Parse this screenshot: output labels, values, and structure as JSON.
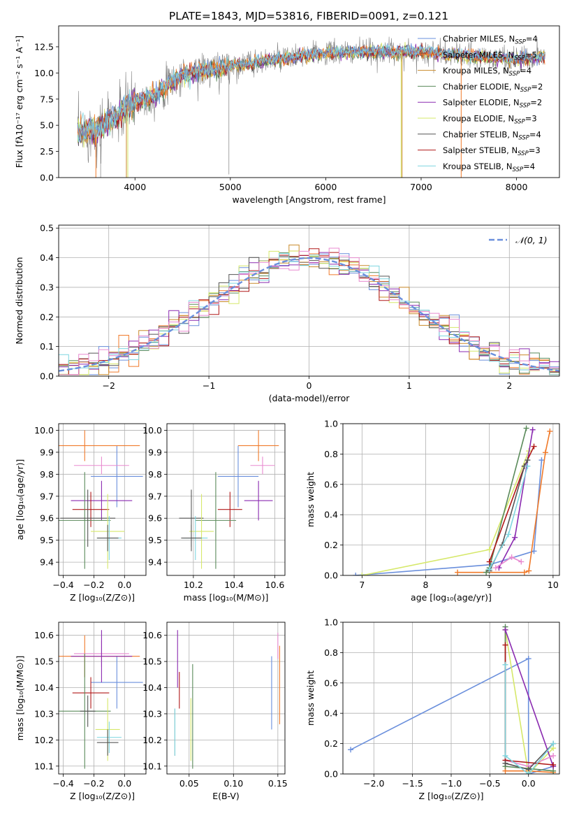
{
  "colors": {
    "chabrier_miles": "#6a8fdc",
    "salpeter_miles": "#f07a2a",
    "kroupa_miles": "#c98a2a",
    "chabrier_elodie": "#5a8a5a",
    "salpeter_elodie": "#8a2ab0",
    "kroupa_elodie": "#d6e86a",
    "chabrier_stelib": "#555555",
    "salpeter_stelib": "#b01818",
    "kroupa_stelib": "#7fd6e0",
    "pink": "#e88ad0"
  },
  "chart_data": [
    {
      "type": "line",
      "id": "spectrum",
      "title": "PLATE=1843, MJD=53816, FIBERID=0091, z=0.121",
      "xlabel": "wavelength [Angstrom, rest frame]",
      "ylabel": "Flux [fλ10⁻¹⁷ erg cm⁻² s⁻¹ A⁻¹]",
      "xlim": [
        3200,
        8450
      ],
      "ylim": [
        0,
        14.5
      ],
      "xticks": [
        "4000",
        "5000",
        "6000",
        "7000",
        "8000"
      ],
      "xtick_values": [
        4000,
        5000,
        6000,
        7000,
        8000
      ],
      "yticks": [
        "0.0",
        "2.5",
        "5.0",
        "7.5",
        "10.0",
        "12.5"
      ],
      "ytick_values": [
        0,
        2.5,
        5,
        7.5,
        10,
        12.5
      ],
      "legend_position": "top-right",
      "legend": [
        "Chabrier MILES, N_SSP=4",
        "Salpeter MILES, N_SSP=5",
        "Kroupa MILES, N_SSP=4",
        "Chabrier ELODIE, N_SSP=2",
        "Salpeter ELODIE, N_SSP=2",
        "Kroupa ELODIE, N_SSP=3",
        "Chabrier STELIB, N_SSP=4",
        "Salpeter STELIB, N_SSP=3",
        "Kroupa STELIB, N_SSP=4"
      ],
      "legend_main": [
        "Chabrier MILES, N",
        "Salpeter MILES, N",
        "Kroupa MILES, N",
        "Chabrier ELODIE, N",
        "Salpeter ELODIE, N",
        "Kroupa ELODIE, N",
        "Chabrier STELIB, N",
        "Salpeter STELIB, N",
        "Kroupa STELIB, N"
      ],
      "legend_sub": "SSP",
      "legend_n": [
        "=4",
        "=5",
        "=4",
        "=2",
        "=2",
        "=3",
        "=4",
        "=3",
        "=4"
      ],
      "continuum_x": [
        3400,
        3600,
        3800,
        4000,
        4200,
        4500,
        5000,
        5500,
        6000,
        6500,
        7000,
        7500,
        8000,
        8300
      ],
      "continuum_y": [
        4.3,
        4.6,
        5.8,
        7.3,
        7.8,
        9.8,
        10.7,
        11.3,
        11.9,
        12.0,
        12.0,
        11.6,
        11.3,
        11.6
      ]
    },
    {
      "type": "histogram",
      "id": "residuals",
      "xlabel": "(data-model)/error",
      "ylabel": "Normed distribution",
      "xlim": [
        -2.5,
        2.5
      ],
      "ylim": [
        0,
        0.51
      ],
      "xticks": [
        "−2",
        "−1",
        "0",
        "1",
        "2"
      ],
      "xtick_values": [
        -2,
        -1,
        0,
        1,
        2
      ],
      "yticks": [
        "0.0",
        "0.1",
        "0.2",
        "0.3",
        "0.4",
        "0.5"
      ],
      "ytick_values": [
        0,
        0.1,
        0.2,
        0.3,
        0.4,
        0.5
      ],
      "legend": [
        "𝒩(0, 1)"
      ],
      "legend_position": "top-right",
      "gaussian_mean": 0,
      "gaussian_sigma": 1,
      "bin_width": 0.1
    },
    {
      "type": "scatter",
      "id": "age_vs_Z",
      "xlabel": "Z [log₁₀(Z/Z⊙)]",
      "ylabel": "age  [log₁₀(age/yr)]",
      "xlim": [
        -0.43,
        0.14
      ],
      "ylim": [
        9.34,
        10.03
      ],
      "xticks": [
        "−0.4",
        "−0.2",
        "0.0"
      ],
      "xtick_values": [
        -0.4,
        -0.2,
        0.0
      ],
      "yticks": [
        "9.4",
        "9.5",
        "9.6",
        "9.7",
        "9.8",
        "9.9",
        "10.0"
      ],
      "ytick_values": [
        9.4,
        9.5,
        9.6,
        9.7,
        9.8,
        9.9,
        10.0
      ],
      "points": [
        {
          "c": "chabrier_miles",
          "x": -0.05,
          "xe": 0.17,
          "y": 9.79,
          "ye": 0.14
        },
        {
          "c": "salpeter_miles",
          "x": -0.26,
          "xe": 0.36,
          "y": 9.93,
          "ye": 0.07
        },
        {
          "c": "pink",
          "x": -0.15,
          "xe": 0.18,
          "y": 9.84,
          "ye": 0.04
        },
        {
          "c": "salpeter_elodie",
          "x": -0.15,
          "xe": 0.2,
          "y": 9.68,
          "ye": 0.09
        },
        {
          "c": "salpeter_stelib",
          "x": -0.22,
          "xe": 0.12,
          "y": 9.64,
          "ye": 0.08
        },
        {
          "c": "chabrier_elodie",
          "x": -0.26,
          "xe": 0.17,
          "y": 9.59,
          "ye": 0.22
        },
        {
          "c": "chabrier_stelib",
          "x": -0.24,
          "xe": 0.18,
          "y": 9.6,
          "ye": 0.13
        },
        {
          "c": "kroupa_elodie",
          "x": -0.11,
          "xe": 0.11,
          "y": 9.54,
          "ye": 0.17
        },
        {
          "c": "kroupa_stelib",
          "x": -0.1,
          "xe": 0.08,
          "y": 9.51,
          "ye": 0.1
        },
        {
          "c": "chabrier_stelib",
          "x": -0.11,
          "xe": 0.07,
          "y": 9.51,
          "ye": 0.06
        }
      ]
    },
    {
      "type": "scatter",
      "id": "age_vs_mass",
      "xlabel": "mass [log₁₀(M/M⊙)]",
      "ylabel": "",
      "xlim": [
        10.07,
        10.65
      ],
      "ylim": [
        9.34,
        10.03
      ],
      "xticks": [
        "10.2",
        "10.4",
        "10.6"
      ],
      "xtick_values": [
        10.2,
        10.4,
        10.6
      ],
      "yticks": [
        "9.4",
        "9.5",
        "9.6",
        "9.7",
        "9.8",
        "9.9",
        "10.0"
      ],
      "ytick_values": [
        9.4,
        9.5,
        9.6,
        9.7,
        9.8,
        9.9,
        10.0
      ],
      "points": [
        {
          "c": "chabrier_miles",
          "x": 10.42,
          "xe": 0.1,
          "y": 9.79,
          "ye": 0.14
        },
        {
          "c": "salpeter_miles",
          "x": 10.52,
          "xe": 0.1,
          "y": 9.93,
          "ye": 0.07
        },
        {
          "c": "pink",
          "x": 10.54,
          "xe": 0.06,
          "y": 9.84,
          "ye": 0.04
        },
        {
          "c": "salpeter_elodie",
          "x": 10.52,
          "xe": 0.07,
          "y": 9.68,
          "ye": 0.09
        },
        {
          "c": "salpeter_stelib",
          "x": 10.38,
          "xe": 0.06,
          "y": 9.64,
          "ye": 0.08
        },
        {
          "c": "chabrier_elodie",
          "x": 10.31,
          "xe": 0.1,
          "y": 9.59,
          "ye": 0.22
        },
        {
          "c": "chabrier_stelib",
          "x": 10.19,
          "xe": 0.06,
          "y": 9.6,
          "ye": 0.13
        },
        {
          "c": "kroupa_elodie",
          "x": 10.24,
          "xe": 0.06,
          "y": 9.54,
          "ye": 0.17
        },
        {
          "c": "kroupa_stelib",
          "x": 10.21,
          "xe": 0.06,
          "y": 9.51,
          "ye": 0.1
        },
        {
          "c": "chabrier_stelib",
          "x": 10.19,
          "xe": 0.05,
          "y": 9.51,
          "ye": 0.06
        }
      ]
    },
    {
      "type": "line",
      "id": "weight_vs_age",
      "xlabel": "age  [log₁₀(age/yr)]",
      "ylabel": "mass weight",
      "xlim": [
        6.7,
        10.1
      ],
      "ylim": [
        0,
        1.0
      ],
      "xticks": [
        "7",
        "8",
        "9",
        "10"
      ],
      "xtick_values": [
        7,
        8,
        9,
        10
      ],
      "yticks": [
        "0.0",
        "0.2",
        "0.4",
        "0.6",
        "0.8",
        "1.0"
      ],
      "ytick_values": [
        0,
        0.2,
        0.4,
        0.6,
        0.8,
        1.0
      ],
      "series": [
        {
          "c": "chabrier_miles",
          "x": [
            6.9,
            9.0,
            9.7,
            9.82
          ],
          "y": [
            0.0,
            0.07,
            0.16,
            0.76
          ]
        },
        {
          "c": "salpeter_miles",
          "x": [
            8.5,
            9.55,
            9.62,
            9.88,
            9.95
          ],
          "y": [
            0.02,
            0.02,
            0.03,
            0.81,
            0.95
          ]
        },
        {
          "c": "kroupa_elodie",
          "x": [
            7.0,
            9.0,
            9.62
          ],
          "y": [
            0.0,
            0.17,
            0.82
          ]
        },
        {
          "c": "chabrier_elodie",
          "x": [
            8.95,
            9.0,
            9.58
          ],
          "y": [
            0.02,
            0.05,
            0.97
          ]
        },
        {
          "c": "salpeter_elodie",
          "x": [
            9.15,
            9.4,
            9.68
          ],
          "y": [
            0.05,
            0.25,
            0.96
          ]
        },
        {
          "c": "pink",
          "x": [
            9.1,
            9.35,
            9.5
          ],
          "y": [
            0.05,
            0.12,
            0.09
          ]
        },
        {
          "c": "salpeter_stelib",
          "x": [
            9.0,
            9.55,
            9.7
          ],
          "y": [
            0.09,
            0.72,
            0.85
          ]
        },
        {
          "c": "chabrier_stelib",
          "x": [
            9.0,
            9.2,
            9.55,
            9.6
          ],
          "y": [
            0.03,
            0.2,
            0.72,
            0.76
          ]
        },
        {
          "c": "kroupa_stelib",
          "x": [
            9.0,
            9.3,
            9.6
          ],
          "y": [
            0.04,
            0.27,
            0.72
          ]
        }
      ]
    },
    {
      "type": "scatter",
      "id": "mass_vs_Z",
      "xlabel": "Z [log₁₀(Z/Z⊙)]",
      "ylabel": "mass [log₁₀(M/M⊙)]",
      "xlim": [
        -0.43,
        0.14
      ],
      "ylim": [
        10.07,
        10.65
      ],
      "xticks": [
        "−0.4",
        "−0.2",
        "0.0"
      ],
      "xtick_values": [
        -0.4,
        -0.2,
        0.0
      ],
      "yticks": [
        "10.1",
        "10.2",
        "10.3",
        "10.4",
        "10.5",
        "10.6"
      ],
      "ytick_values": [
        10.1,
        10.2,
        10.3,
        10.4,
        10.5,
        10.6
      ],
      "points": [
        {
          "c": "chabrier_miles",
          "x": -0.05,
          "xe": 0.17,
          "y": 10.42,
          "ye": 0.1
        },
        {
          "c": "salpeter_miles",
          "x": -0.26,
          "xe": 0.36,
          "y": 10.52,
          "ye": 0.08
        },
        {
          "c": "pink",
          "x": -0.15,
          "xe": 0.18,
          "y": 10.53,
          "ye": 0.05
        },
        {
          "c": "salpeter_elodie",
          "x": -0.15,
          "xe": 0.2,
          "y": 10.52,
          "ye": 0.1
        },
        {
          "c": "salpeter_stelib",
          "x": -0.22,
          "xe": 0.12,
          "y": 10.38,
          "ye": 0.06
        },
        {
          "c": "chabrier_elodie",
          "x": -0.26,
          "xe": 0.17,
          "y": 10.31,
          "ye": 0.22
        },
        {
          "c": "chabrier_stelib",
          "x": -0.24,
          "xe": 0.05,
          "y": 10.31,
          "ye": 0.06
        },
        {
          "c": "kroupa_elodie",
          "x": -0.11,
          "xe": 0.08,
          "y": 10.24,
          "ye": 0.12
        },
        {
          "c": "kroupa_stelib",
          "x": -0.1,
          "xe": 0.08,
          "y": 10.21,
          "ye": 0.06
        },
        {
          "c": "chabrier_stelib",
          "x": -0.11,
          "xe": 0.07,
          "y": 10.19,
          "ye": 0.05
        }
      ]
    },
    {
      "type": "scatter",
      "id": "mass_vs_ebv",
      "xlabel": "E(B-V)",
      "ylabel": "",
      "xlim": [
        0.025,
        0.158
      ],
      "ylim": [
        10.07,
        10.65
      ],
      "xticks": [
        "0.05",
        "0.10",
        "0.15"
      ],
      "xtick_values": [
        0.05,
        0.1,
        0.15
      ],
      "yticks": [
        "10.1",
        "10.2",
        "10.3",
        "10.4",
        "10.5",
        "10.6"
      ],
      "ytick_values": [
        10.1,
        10.2,
        10.3,
        10.4,
        10.5,
        10.6
      ],
      "points": [
        {
          "c": "chabrier_miles",
          "x": 0.143,
          "xe": 0.0,
          "y": 10.38,
          "ye": 0.14
        },
        {
          "c": "salpeter_miles",
          "x": 0.152,
          "xe": 0.0,
          "y": 10.41,
          "ye": 0.15
        },
        {
          "c": "pink",
          "x": 0.15,
          "xe": 0.0,
          "y": 10.56,
          "ye": 0.05
        },
        {
          "c": "salpeter_elodie",
          "x": 0.037,
          "xe": 0.0,
          "y": 10.51,
          "ye": 0.11
        },
        {
          "c": "salpeter_stelib",
          "x": 0.039,
          "xe": 0.0,
          "y": 10.39,
          "ye": 0.07
        },
        {
          "c": "chabrier_elodie",
          "x": 0.054,
          "xe": 0.0,
          "y": 10.29,
          "ye": 0.2
        },
        {
          "c": "chabrier_stelib",
          "x": 0.034,
          "xe": 0.0,
          "y": 10.23,
          "ye": 0.09
        },
        {
          "c": "kroupa_elodie",
          "x": 0.052,
          "xe": 0.0,
          "y": 10.24,
          "ye": 0.12
        },
        {
          "c": "kroupa_stelib",
          "x": 0.034,
          "xe": 0.0,
          "y": 10.23,
          "ye": 0.09
        }
      ]
    },
    {
      "type": "line",
      "id": "weight_vs_Z",
      "xlabel": "Z [log₁₀(Z/Z⊙)]",
      "ylabel": "mass weight",
      "xlim": [
        -2.4,
        0.4
      ],
      "ylim": [
        0,
        1.0
      ],
      "xticks": [
        "−2.0",
        "−1.5",
        "−1.0",
        "−0.5",
        "0.0"
      ],
      "xtick_values": [
        -2.0,
        -1.5,
        -1.0,
        -0.5,
        0.0
      ],
      "yticks": [
        "0.0",
        "0.2",
        "0.4",
        "0.6",
        "0.8",
        "1.0"
      ],
      "ytick_values": [
        0,
        0.2,
        0.4,
        0.6,
        0.8,
        1.0
      ],
      "series": [
        {
          "c": "chabrier_miles",
          "x": [
            -2.3,
            0.0,
            0.0,
            0.32
          ],
          "y": [
            0.16,
            0.76,
            0.0,
            0.05
          ]
        },
        {
          "c": "salpeter_miles",
          "x": [
            -0.3,
            -0.3,
            0.0,
            0.32
          ],
          "y": [
            0.95,
            0.02,
            0.02,
            0.01
          ]
        },
        {
          "c": "kroupa_elodie",
          "x": [
            -0.3,
            0.0,
            0.32
          ],
          "y": [
            0.95,
            0.0,
            0.17
          ]
        },
        {
          "c": "chabrier_elodie",
          "x": [
            -0.3,
            -0.3,
            0.32
          ],
          "y": [
            0.97,
            0.05,
            0.02
          ]
        },
        {
          "c": "salpeter_elodie",
          "x": [
            -0.3,
            0.32
          ],
          "y": [
            0.95,
            0.05
          ]
        },
        {
          "c": "pink",
          "x": [
            -0.3,
            0.0,
            0.32
          ],
          "y": [
            0.09,
            0.05,
            0.12
          ]
        },
        {
          "c": "salpeter_stelib",
          "x": [
            -0.3,
            -0.3,
            0.32
          ],
          "y": [
            0.85,
            0.09,
            0.06
          ]
        },
        {
          "c": "chabrier_stelib",
          "x": [
            -0.3,
            0.0,
            0.32
          ],
          "y": [
            0.07,
            0.03,
            0.2
          ]
        },
        {
          "c": "kroupa_stelib",
          "x": [
            -0.3,
            -0.3,
            0.0,
            0.32
          ],
          "y": [
            0.72,
            0.12,
            0.0,
            0.2
          ]
        }
      ]
    }
  ]
}
